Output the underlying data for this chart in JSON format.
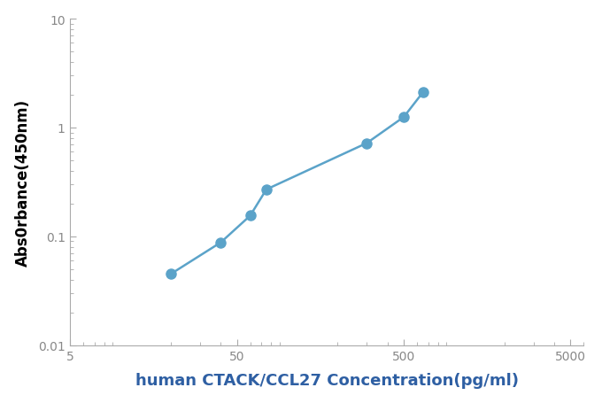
{
  "x": [
    20,
    40,
    60,
    75,
    300,
    500,
    650
  ],
  "y": [
    0.045,
    0.088,
    0.155,
    0.27,
    0.72,
    1.25,
    2.1
  ],
  "color": "#5BA3C9",
  "marker": "o",
  "markersize": 8,
  "linewidth": 1.8,
  "xlim": [
    5,
    6000
  ],
  "ylim": [
    0.01,
    10
  ],
  "xlabel": "human CTACK/CCL27 Concentration(pg/ml)",
  "ylabel": "Abs0rbance(450nm)",
  "xlabel_color": "#2E5FA3",
  "ylabel_color": "#000000",
  "xlabel_fontsize": 13,
  "ylabel_fontsize": 12,
  "xtick_labels": [
    "5",
    "50",
    "500",
    "5000"
  ],
  "xticks": [
    5,
    50,
    500,
    5000
  ],
  "yticks": [
    0.01,
    0.1,
    1,
    10
  ],
  "background_color": "#ffffff",
  "plot_bg_color": "#ffffff",
  "tick_label_color": "#888888",
  "spine_color": "#aaaaaa",
  "tick_color": "#aaaaaa"
}
